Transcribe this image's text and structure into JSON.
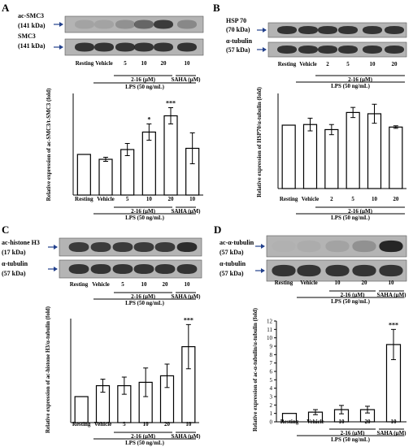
{
  "colors": {
    "ink": "#000000",
    "blot_bg": "#b4b4b4",
    "band": "#262626",
    "arrow": "#23418c",
    "bar_fill": "#ffffff"
  },
  "chart_data": [
    {
      "panel": "A",
      "type": "bar",
      "blots": [
        {
          "label": [
            "ac-SMC3",
            "(141 kDa)"
          ],
          "band_strength": [
            0.12,
            0.12,
            0.25,
            0.55,
            0.85,
            0.3
          ]
        },
        {
          "label": [
            "SMC3",
            "(141 kDa)"
          ],
          "band_strength": [
            0.9,
            0.9,
            0.9,
            0.9,
            0.9,
            0.9
          ]
        }
      ],
      "categories": [
        "Resting",
        "Vehicle",
        "5",
        "10",
        "20",
        "10"
      ],
      "values": [
        1.0,
        0.88,
        1.12,
        1.55,
        1.95,
        1.15
      ],
      "errors": [
        0.0,
        0.05,
        0.15,
        0.2,
        0.2,
        0.38
      ],
      "significance": [
        "",
        "",
        "",
        "*",
        "***",
        ""
      ],
      "ylabel": "Relative expression of ac-SMC3/t-SMC3 (fold)",
      "ylim": [
        0,
        2.5
      ],
      "yticks": [],
      "group_labels": [
        "2-16 (μM)",
        "SAHA (μM)"
      ],
      "treatment_label": "LPS (50 ng/mL)"
    },
    {
      "panel": "B",
      "type": "bar",
      "blots": [
        {
          "label": [
            "HSP 70",
            "(70 kDa)"
          ],
          "band_strength": [
            0.9,
            0.9,
            0.9,
            0.9,
            0.9,
            0.9
          ]
        },
        {
          "label": [
            "α-tubulin",
            "(57 kDa)"
          ],
          "band_strength": [
            0.9,
            0.9,
            0.9,
            0.9,
            0.9,
            0.9
          ]
        }
      ],
      "categories": [
        "Resting",
        "Vehicle",
        "2",
        "5",
        "10",
        "20"
      ],
      "values": [
        1.0,
        1.01,
        0.93,
        1.2,
        1.18,
        0.97
      ],
      "errors": [
        0.0,
        0.1,
        0.08,
        0.08,
        0.15,
        0.02
      ],
      "significance": [
        "",
        "",
        "",
        "",
        "",
        ""
      ],
      "ylabel": "Relative expression of HSP70/α-tubulin (fold)",
      "ylim": [
        0,
        1.5
      ],
      "yticks": [],
      "group_labels": [
        "2-16 (μM)"
      ],
      "treatment_label": "LPS (50 ng/mL)"
    },
    {
      "panel": "C",
      "type": "bar",
      "blots": [
        {
          "label": [
            "ac-histone H3",
            "(17 kDa)"
          ],
          "band_strength": [
            0.85,
            0.85,
            0.85,
            0.85,
            0.85,
            0.95
          ]
        },
        {
          "label": [
            "α-tubulin",
            "(57 kDa)"
          ],
          "band_strength": [
            0.9,
            0.9,
            0.9,
            0.9,
            0.9,
            0.9
          ]
        }
      ],
      "categories": [
        "Resting",
        "Vehicle",
        "5",
        "10",
        "20",
        "10"
      ],
      "values": [
        1.0,
        1.42,
        1.42,
        1.55,
        1.8,
        2.92
      ],
      "errors": [
        0.0,
        0.25,
        0.33,
        0.55,
        0.45,
        0.85
      ],
      "significance": [
        "",
        "",
        "",
        "",
        "",
        "***"
      ],
      "ylabel": "Relative expression of ac-histone H3/α-tubulin (fold)",
      "ylim": [
        0,
        4
      ],
      "yticks": [],
      "group_labels": [
        "2-16 (μM)",
        "SAHA (μM)"
      ],
      "treatment_label": "LPS (50 ng/mL)"
    },
    {
      "panel": "D",
      "type": "bar",
      "blots": [
        {
          "label": [
            "ac-α-tubulin",
            "(57 kDa)"
          ],
          "band_strength": [
            0.02,
            0.05,
            0.12,
            0.25,
            1.0
          ]
        },
        {
          "label": [
            "α-tubulin",
            "(57 kDa)"
          ],
          "band_strength": [
            0.9,
            0.9,
            0.9,
            0.9,
            0.9
          ]
        }
      ],
      "categories": [
        "Resting",
        "Vehicle",
        "10",
        "20",
        "10"
      ],
      "values": [
        1.0,
        1.15,
        1.45,
        1.45,
        9.2
      ],
      "errors": [
        0.0,
        0.3,
        0.5,
        0.4,
        1.8
      ],
      "significance": [
        "",
        "",
        "",
        "",
        "***"
      ],
      "ylabel": "Relative expression of ac-α-tubulin/α-tubulin (fold)",
      "ylim": [
        0,
        12
      ],
      "yticks": [
        0,
        1,
        2,
        3,
        4,
        5,
        6,
        7,
        8,
        9,
        10,
        11,
        12
      ],
      "group_labels": [
        "2-16 (μM)",
        "SAHA (μM)"
      ],
      "treatment_label": "LPS (50 ng/mL)"
    }
  ]
}
